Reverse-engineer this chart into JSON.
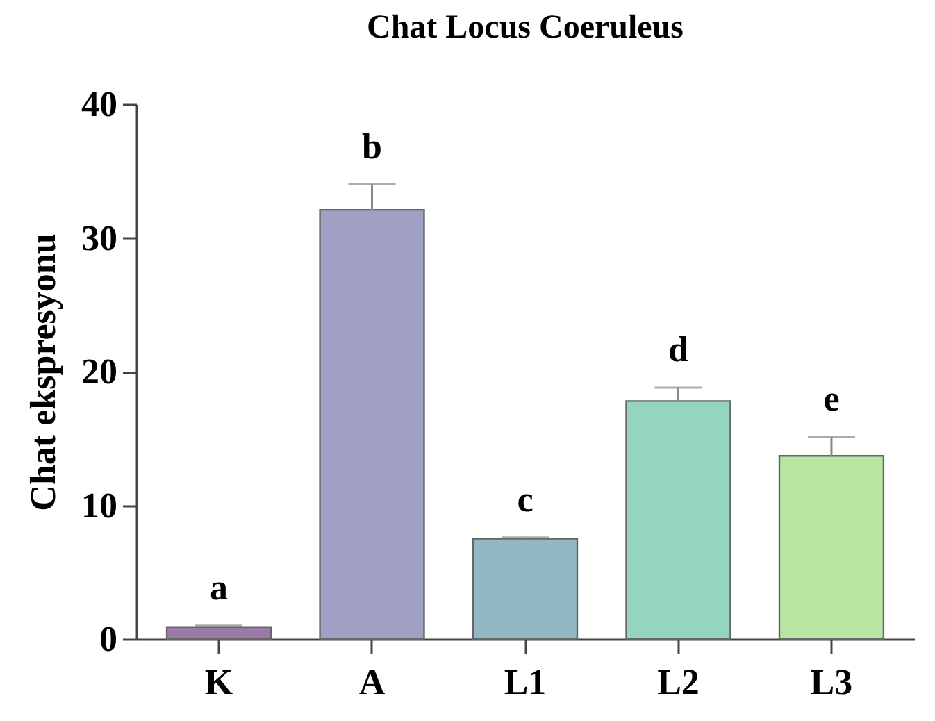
{
  "chart_data": {
    "type": "bar",
    "title": "Chat Locus Coeruleus",
    "ylabel": "Chat ekspresyonu",
    "categories": [
      "K",
      "A",
      "L1",
      "L2",
      "L3"
    ],
    "values": [
      0.9,
      32.1,
      7.5,
      17.8,
      13.7
    ],
    "errors": [
      0.1,
      1.9,
      0.1,
      1.0,
      1.4
    ],
    "colors": [
      "#9c7aa8",
      "#a0a0c4",
      "#93b8c4",
      "#94d4c0",
      "#b8e6a0"
    ],
    "ylim": [
      0,
      40
    ],
    "yticks": [
      0,
      10,
      20,
      30,
      40
    ],
    "grid": false,
    "legend": false,
    "annotations": [
      "a",
      "b",
      "c",
      "d",
      "e"
    ]
  }
}
